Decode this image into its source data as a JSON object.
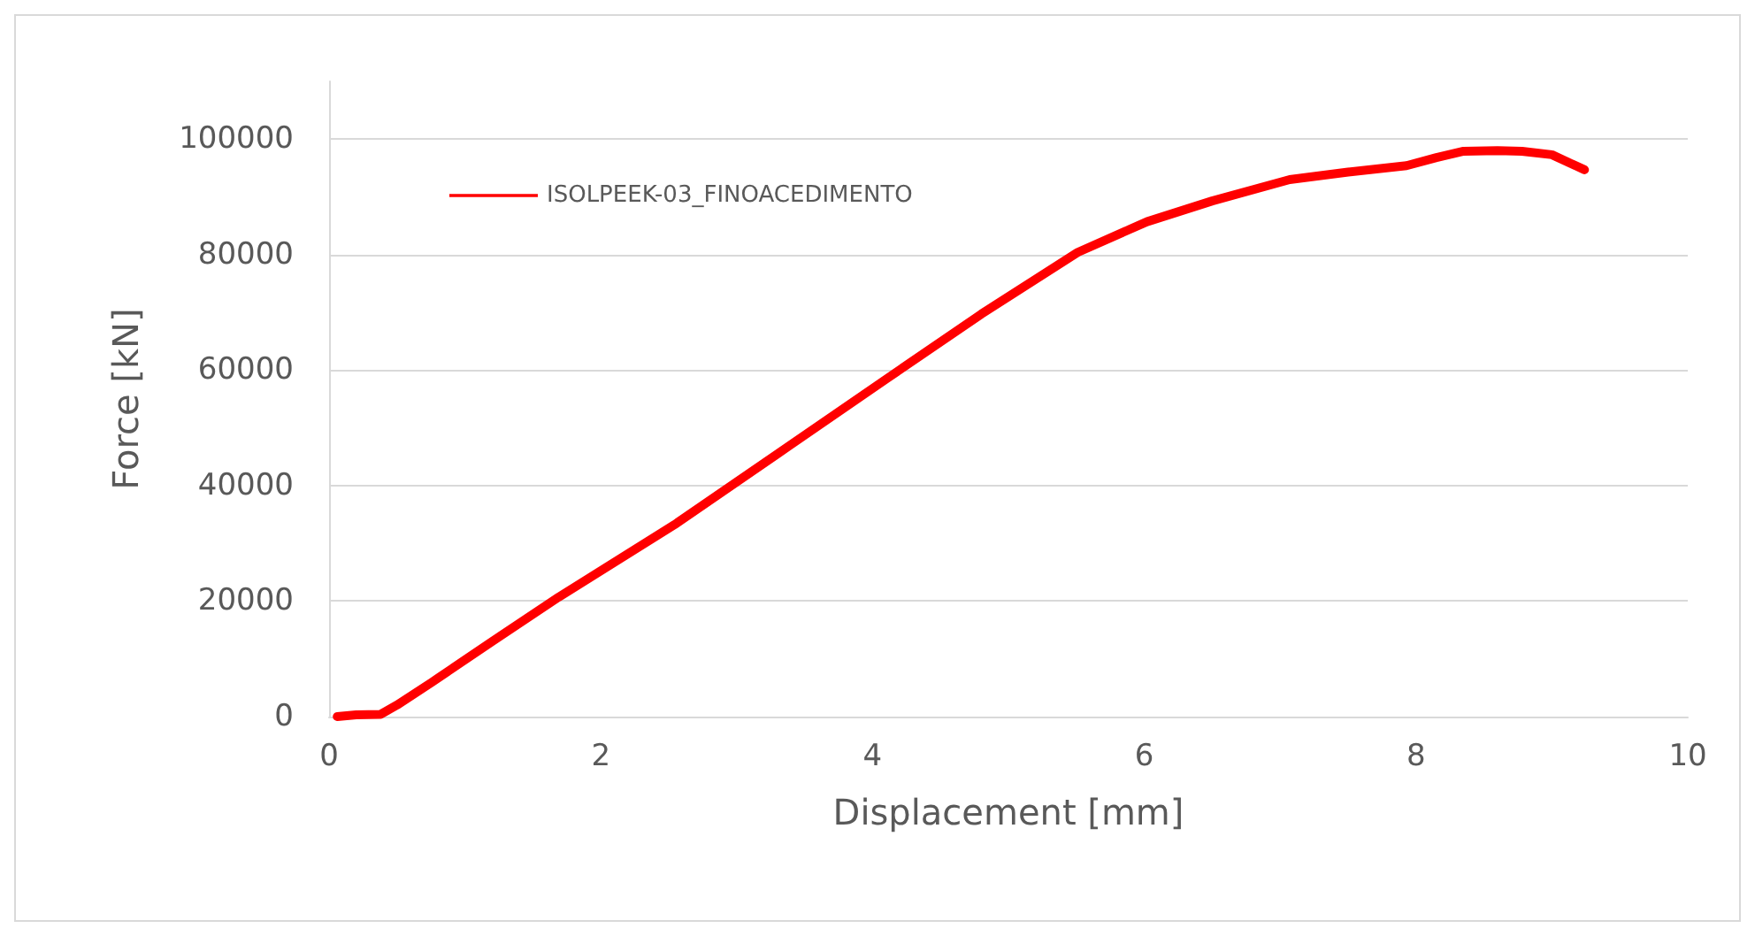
{
  "chart_data": {
    "type": "line",
    "xlabel": "Displacement [mm]",
    "ylabel": "Force [kN]",
    "x": [
      0.06,
      0.2,
      0.38,
      0.5,
      0.76,
      1.2,
      1.69,
      2.54,
      3.3,
      4.11,
      4.8,
      5.51,
      6.02,
      6.5,
      7.07,
      7.5,
      7.93,
      8.15,
      8.35,
      8.6,
      8.78,
      9.0,
      9.24
    ],
    "series": [
      {
        "name": "ISOLPEEK-03_FINOACEDIMENTO",
        "color": "#ff0000",
        "values": [
          0,
          300,
          400,
          2000,
          6000,
          13000,
          20700,
          33200,
          45500,
          58600,
          69700,
          80400,
          85700,
          89300,
          93000,
          94300,
          95400,
          96800,
          97900,
          98000,
          97900,
          97300,
          94700
        ]
      }
    ],
    "xlim": [
      0,
      10
    ],
    "xticks": [
      0,
      2,
      4,
      6,
      8,
      10
    ],
    "ylim": [
      0,
      110000
    ],
    "yticks": [
      0,
      20000,
      40000,
      60000,
      80000,
      100000
    ],
    "grid": "y",
    "legend": "top left",
    "marker": "none",
    "line_style": "solid"
  }
}
